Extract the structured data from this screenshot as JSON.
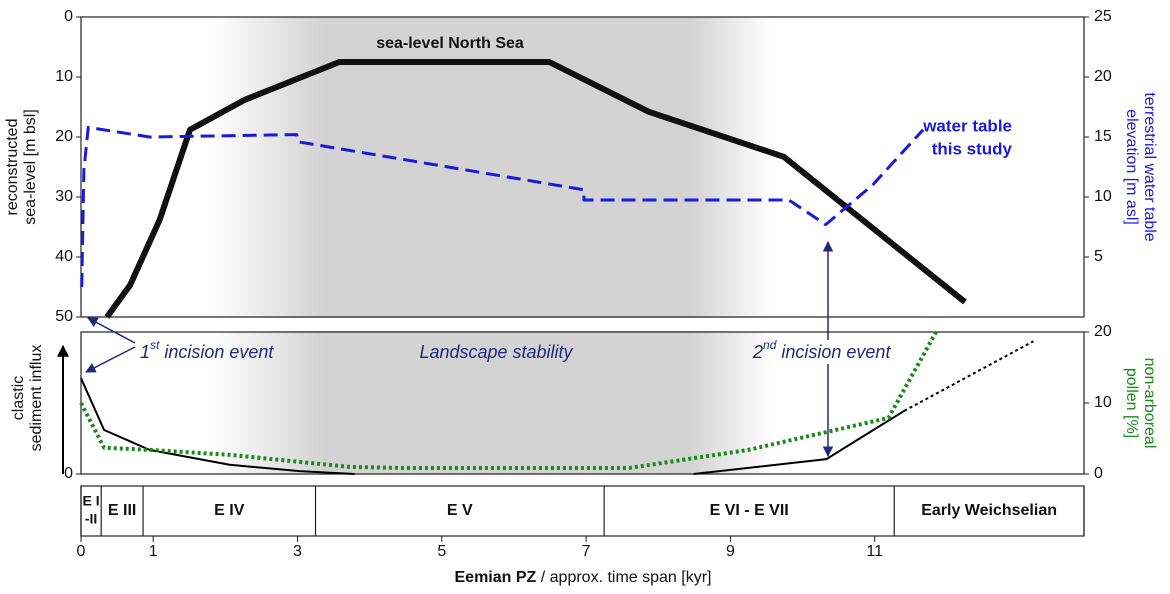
{
  "shaded_span": [
    1.8,
    9.6
  ],
  "x_axis": {
    "xlim": [
      0,
      13.9
    ],
    "xticks": [
      0,
      1,
      3,
      5,
      7,
      9,
      11
    ],
    "title_bold": "Eemian PZ",
    "title_rest": " / approx. time span [kyr]"
  },
  "pollen_zones": {
    "boundaries": [
      0,
      0.28,
      0.86,
      3.25,
      7.25,
      11.27,
      13.9
    ],
    "labels": [
      [
        "E I",
        "-II"
      ],
      [
        "E III"
      ],
      [
        "E IV"
      ],
      [
        "E V"
      ],
      [
        "E VI - E VII"
      ],
      [
        "Early Weichselian"
      ]
    ]
  },
  "chart_data": [
    {
      "type": "line",
      "ylabel": [
        "reconstructed",
        "sea-level [m bsl]"
      ],
      "y2label": [
        "terrestrial water table",
        "elevation [m asl]"
      ],
      "y2label_color": "#1a1adc",
      "ylim": [
        0,
        50
      ],
      "y_inverted": true,
      "yticks": [
        0,
        10,
        20,
        30,
        40,
        50
      ],
      "y2lim": [
        0,
        25
      ],
      "y2ticks": [
        5,
        10,
        15,
        20,
        25
      ],
      "series": [
        {
          "name": "sea-level North Sea",
          "color": "#111111",
          "dash": "solid",
          "width": 6,
          "x": [
            0.36,
            0.68,
            1.09,
            1.51,
            2.27,
            3.58,
            6.49,
            7.87,
            9.74,
            12.25
          ],
          "values": [
            50,
            44.7,
            33.8,
            18.8,
            13.8,
            7.5,
            7.5,
            15.8,
            23.3,
            47.5
          ]
        },
        {
          "label_lines": [
            "water table",
            "this study"
          ],
          "color": "#1a1adc",
          "dash": "dashed",
          "width": 3,
          "axis": "y2",
          "x": [
            0.01,
            0.04,
            0.1,
            0.95,
            2.99,
            3.01,
            6.97,
            6.97,
            9.81,
            10.32,
            10.97,
            11.67
          ],
          "values": [
            2.5,
            12.25,
            15.8,
            15,
            15.2,
            14.6,
            10.6,
            9.75,
            9.75,
            7.7,
            11,
            15.6
          ]
        }
      ]
    },
    {
      "type": "line",
      "ylabel": [
        "clastic",
        "sediment influx"
      ],
      "y2label": [
        "non-arboreal",
        "pollen [%]"
      ],
      "y2label_color": "#1a8a1a",
      "ylim": [
        0,
        20
      ],
      "yticks": [
        0
      ],
      "y2lim": [
        0,
        20
      ],
      "y2ticks": [
        0,
        10,
        20
      ],
      "annotations": [
        {
          "parts": [
            "1",
            "st",
            " incision event"
          ]
        },
        {
          "parts": [
            "Landscape stability"
          ]
        },
        {
          "parts": [
            "2",
            "nd",
            " incision event"
          ]
        }
      ],
      "series": [
        {
          "color": "#000000",
          "dash": "solid",
          "width": 2,
          "x": [
            0,
            0.32,
            0.95,
            2.06,
            3.03,
            3.79,
            null,
            8.49,
            10.33,
            11.41
          ],
          "values": [
            13.5,
            6.2,
            3.4,
            1.3,
            0.4,
            0,
            null,
            0,
            2.1,
            8.9
          ]
        },
        {
          "color": "#000000",
          "dash": "dotted",
          "width": 2,
          "x": [
            11.41,
            13.2
          ],
          "values": [
            8.9,
            18.7
          ]
        },
        {
          "color": "#1a8a1a",
          "dash": "dotted",
          "width": 4,
          "axis": "y2",
          "x": [
            0,
            0.32,
            0.95,
            2.06,
            3.72,
            4.41,
            7.6,
            9.25,
            11.19,
            11.85
          ],
          "values": [
            10,
            3.7,
            3.4,
            2.7,
            1.0,
            0.85,
            0.85,
            3.4,
            7.9,
            20
          ]
        }
      ]
    }
  ]
}
